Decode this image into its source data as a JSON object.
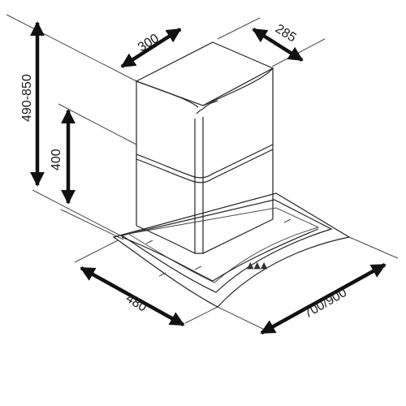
{
  "diagram": {
    "dimensions": {
      "top_depth": "300",
      "top_width": "285",
      "total_height": "490-850",
      "chimney_height": "400",
      "canopy_depth": "480",
      "canopy_width": "700/900"
    }
  }
}
